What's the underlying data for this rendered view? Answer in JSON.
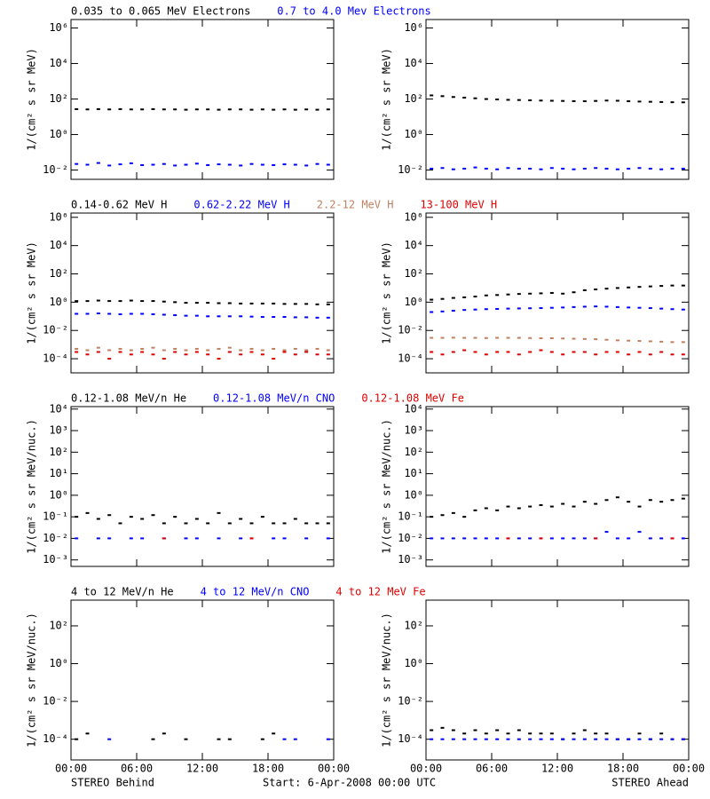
{
  "chart_data": [
    {
      "type": "scatter",
      "log_scale": true,
      "ylabel": "1/(cm² s sr MeV)",
      "ylim": [
        0.003,
        3000000
      ],
      "yticks": [
        {
          "value": 0.01,
          "label": "10⁻²"
        },
        {
          "value": 1,
          "label": "10⁰"
        },
        {
          "value": 100,
          "label": "10²"
        },
        {
          "value": 10000,
          "label": "10⁴"
        },
        {
          "value": 1000000,
          "label": "10⁶"
        }
      ],
      "series": [
        {
          "name": "0.035 to 0.065 MeV Electrons",
          "color": "#000000",
          "behind": [
            27,
            26,
            27,
            26,
            27,
            26,
            26,
            27,
            26,
            26,
            25,
            26,
            26,
            25,
            26,
            26,
            25,
            26,
            25,
            26,
            25,
            26,
            25,
            26
          ],
          "ahead": [
            160,
            145,
            130,
            120,
            110,
            100,
            95,
            90,
            88,
            85,
            82,
            80,
            78,
            76,
            75,
            78,
            82,
            80,
            75,
            72,
            70,
            68,
            66,
            65
          ]
        },
        {
          "name": "0.7 to 4.0 Mev Electrons",
          "color": "#0000ff",
          "behind": [
            0.022,
            0.02,
            0.025,
            0.018,
            0.021,
            0.024,
            0.019,
            0.02,
            0.022,
            0.018,
            0.02,
            0.023,
            0.019,
            0.021,
            0.02,
            0.018,
            0.022,
            0.02,
            0.019,
            0.021,
            0.02,
            0.018,
            0.022,
            0.02
          ],
          "ahead": [
            0.012,
            0.013,
            0.011,
            0.012,
            0.014,
            0.012,
            0.011,
            0.013,
            0.012,
            0.012,
            0.011,
            0.013,
            0.012,
            0.011,
            0.012,
            0.013,
            0.012,
            0.011,
            0.012,
            0.013,
            0.012,
            0.011,
            0.012,
            0.012
          ]
        }
      ]
    },
    {
      "type": "scatter",
      "log_scale": true,
      "ylabel": "1/(cm² s sr MeV)",
      "ylim": [
        1e-05,
        2000000
      ],
      "yticks": [
        {
          "value": 0.0001,
          "label": "10⁻⁴"
        },
        {
          "value": 0.01,
          "label": "10⁻²"
        },
        {
          "value": 1,
          "label": "10⁰"
        },
        {
          "value": 100,
          "label": "10²"
        },
        {
          "value": 10000,
          "label": "10⁴"
        },
        {
          "value": 1000000,
          "label": "10⁶"
        }
      ],
      "series": [
        {
          "name": "0.14-0.62 MeV H",
          "color": "#000000",
          "behind": [
            1.2,
            1.2,
            1.3,
            1.2,
            1.2,
            1.3,
            1.2,
            1.2,
            1.1,
            1.0,
            0.9,
            0.9,
            0.9,
            0.85,
            0.85,
            0.8,
            0.8,
            0.8,
            0.8,
            0.75,
            0.75,
            0.75,
            0.7,
            0.7
          ],
          "ahead": [
            1.5,
            1.7,
            2,
            2.2,
            2.5,
            3,
            3.2,
            3.5,
            3.8,
            4,
            4.2,
            4.5,
            4,
            5,
            7,
            8,
            9,
            10,
            11,
            12,
            13,
            14,
            15,
            15
          ]
        },
        {
          "name": "0.62-2.22 MeV H",
          "color": "#0000ff",
          "behind": [
            0.15,
            0.15,
            0.16,
            0.15,
            0.14,
            0.15,
            0.15,
            0.14,
            0.13,
            0.12,
            0.11,
            0.11,
            0.1,
            0.1,
            0.1,
            0.1,
            0.095,
            0.09,
            0.09,
            0.09,
            0.085,
            0.085,
            0.08,
            0.08
          ],
          "ahead": [
            0.2,
            0.22,
            0.25,
            0.28,
            0.3,
            0.32,
            0.33,
            0.35,
            0.36,
            0.37,
            0.38,
            0.4,
            0.42,
            0.45,
            0.48,
            0.5,
            0.48,
            0.45,
            0.42,
            0.4,
            0.38,
            0.35,
            0.32,
            0.3
          ]
        },
        {
          "name": "2.2-12 MeV H",
          "color": "#c08060",
          "behind": [
            0.0005,
            0.0004,
            0.0006,
            0.0004,
            0.0005,
            0.0004,
            0.0005,
            0.0006,
            0.0004,
            0.0005,
            0.0004,
            0.0005,
            0.0004,
            0.0005,
            0.0006,
            0.0004,
            0.0005,
            0.0004,
            0.0005,
            0.0004,
            0.0005,
            0.0004,
            0.0005,
            0.0004
          ],
          "ahead": [
            0.003,
            0.003,
            0.0031,
            0.003,
            0.003,
            0.0029,
            0.003,
            0.003,
            0.003,
            0.0029,
            0.0028,
            0.0028,
            0.0027,
            0.0026,
            0.0025,
            0.0024,
            0.0022,
            0.002,
            0.0019,
            0.0018,
            0.0017,
            0.0016,
            0.0015,
            0.0015
          ]
        },
        {
          "name": "13-100 MeV H",
          "color": "#e00000",
          "behind": [
            0.0003,
            0.0002,
            0.0003,
            0.0001,
            0.0003,
            0.0002,
            0.0003,
            0.0002,
            0.0001,
            0.0003,
            0.0002,
            0.0003,
            0.0002,
            0.0001,
            0.0003,
            0.0002,
            0.0003,
            0.0002,
            0.0001,
            0.0003,
            0.0002,
            0.0003,
            0.0002,
            0.0002
          ],
          "ahead": [
            0.0003,
            0.0002,
            0.0003,
            0.0004,
            0.0003,
            0.0002,
            0.0003,
            0.0003,
            0.0002,
            0.0003,
            0.0004,
            0.0003,
            0.0002,
            0.0003,
            0.0003,
            0.0002,
            0.0003,
            0.0003,
            0.0002,
            0.0003,
            0.0002,
            0.0003,
            0.0002,
            0.0002
          ]
        }
      ]
    },
    {
      "type": "scatter",
      "log_scale": true,
      "ylabel": "1/(cm² s sr MeV/nuc.)",
      "ylim": [
        0.0005,
        13000
      ],
      "yticks": [
        {
          "value": 0.001,
          "label": "10⁻³"
        },
        {
          "value": 0.01,
          "label": "10⁻²"
        },
        {
          "value": 0.1,
          "label": "10⁻¹"
        },
        {
          "value": 1,
          "label": "10⁰"
        },
        {
          "value": 10,
          "label": "10¹"
        },
        {
          "value": 100,
          "label": "10²"
        },
        {
          "value": 1000,
          "label": "10³"
        },
        {
          "value": 10000,
          "label": "10⁴"
        }
      ],
      "series": [
        {
          "name": "0.12-1.08 MeV/n He",
          "color": "#000000",
          "behind": [
            0.1,
            0.15,
            0.08,
            0.12,
            0.05,
            0.1,
            0.08,
            0.12,
            0.05,
            0.1,
            0.05,
            0.08,
            0.05,
            0.15,
            0.05,
            0.08,
            0.05,
            0.1,
            0.05,
            0.05,
            0.08,
            0.05,
            0.05,
            0.05
          ],
          "ahead": [
            0.1,
            0.12,
            0.15,
            0.1,
            0.2,
            0.25,
            0.2,
            0.3,
            0.25,
            0.3,
            0.35,
            0.3,
            0.4,
            0.3,
            0.5,
            0.4,
            0.6,
            0.8,
            0.5,
            0.3,
            0.6,
            0.5,
            0.6,
            0.7
          ]
        },
        {
          "name": "0.12-1.08 MeV/n CNO",
          "color": "#0000ff",
          "behind": [
            0.01,
            null,
            0.01,
            0.01,
            null,
            0.01,
            0.01,
            null,
            0.01,
            null,
            0.01,
            0.01,
            null,
            0.01,
            null,
            0.01,
            0.01,
            null,
            0.01,
            0.01,
            null,
            0.01,
            null,
            0.01
          ],
          "ahead": [
            0.01,
            0.01,
            0.01,
            0.01,
            0.01,
            0.01,
            0.01,
            0.01,
            0.01,
            0.01,
            0.01,
            0.01,
            0.01,
            0.01,
            0.01,
            0.01,
            0.02,
            0.01,
            0.01,
            0.02,
            0.01,
            0.01,
            0.01,
            0.01
          ]
        },
        {
          "name": "0.12-1.08 MeV Fe",
          "color": "#e00000",
          "behind": [
            null,
            null,
            null,
            null,
            null,
            null,
            null,
            null,
            0.01,
            null,
            null,
            null,
            null,
            null,
            null,
            null,
            0.01,
            null,
            null,
            null,
            null,
            null,
            null,
            null
          ],
          "ahead": [
            null,
            null,
            null,
            null,
            null,
            null,
            null,
            0.01,
            null,
            null,
            0.01,
            null,
            null,
            null,
            null,
            0.01,
            null,
            null,
            null,
            null,
            null,
            null,
            0.01,
            null
          ]
        }
      ]
    },
    {
      "type": "scatter",
      "log_scale": true,
      "ylabel": "1/(cm² s sr MeV/nuc.)",
      "ylim": [
        8e-06,
        2300
      ],
      "yticks": [
        {
          "value": 0.0001,
          "label": "10⁻⁴"
        },
        {
          "value": 0.01,
          "label": "10⁻²"
        },
        {
          "value": 1,
          "label": "10⁰"
        },
        {
          "value": 100,
          "label": "10²"
        }
      ],
      "series": [
        {
          "name": "4 to 12 MeV/n He",
          "color": "#000000",
          "behind": [
            0.0001,
            0.0002,
            null,
            null,
            null,
            null,
            null,
            0.0001,
            0.0002,
            null,
            0.0001,
            null,
            null,
            0.0001,
            0.0001,
            null,
            null,
            0.0001,
            0.0002,
            null,
            null,
            null,
            null,
            null
          ],
          "ahead": [
            0.0003,
            0.0004,
            0.0003,
            0.0002,
            0.0003,
            0.0002,
            0.0003,
            0.0002,
            0.0003,
            0.0002,
            0.0002,
            0.0002,
            0.0001,
            0.0002,
            0.0003,
            0.0002,
            0.0002,
            0.0001,
            0.0001,
            0.0002,
            0.0001,
            0.0002,
            0.0001,
            0.0001
          ]
        },
        {
          "name": "4 to 12 MeV/n CNO",
          "color": "#0000ff",
          "behind": [
            null,
            null,
            null,
            0.0001,
            null,
            null,
            null,
            null,
            null,
            null,
            null,
            null,
            null,
            null,
            null,
            null,
            null,
            null,
            null,
            0.0001,
            0.0001,
            null,
            null,
            0.0001
          ],
          "ahead": [
            0.0001,
            0.0001,
            0.0001,
            0.0001,
            0.0001,
            0.0001,
            0.0001,
            0.0001,
            0.0001,
            0.0001,
            0.0001,
            0.0001,
            0.0001,
            0.0001,
            0.0001,
            0.0001,
            0.0001,
            0.0001,
            0.0001,
            0.0001,
            0.0001,
            0.0001,
            0.0001,
            0.0001
          ]
        },
        {
          "name": "4 to 12 MeV Fe",
          "color": "#e00000",
          "behind": [
            null,
            null,
            null,
            null,
            null,
            null,
            null,
            null,
            null,
            null,
            null,
            null,
            null,
            null,
            null,
            null,
            null,
            null,
            null,
            null,
            null,
            null,
            null,
            null
          ],
          "ahead": [
            null,
            null,
            null,
            null,
            null,
            null,
            null,
            null,
            null,
            null,
            null,
            null,
            null,
            null,
            null,
            null,
            null,
            null,
            null,
            null,
            null,
            null,
            null,
            null
          ]
        }
      ]
    }
  ],
  "x_axis": {
    "ticks": [
      "00:00",
      "06:00",
      "12:00",
      "18:00",
      "00:00"
    ]
  },
  "footer": {
    "left": "STEREO Behind",
    "center": "Start:  6-Apr-2008 00:00 UTC",
    "right": "STEREO Ahead"
  }
}
